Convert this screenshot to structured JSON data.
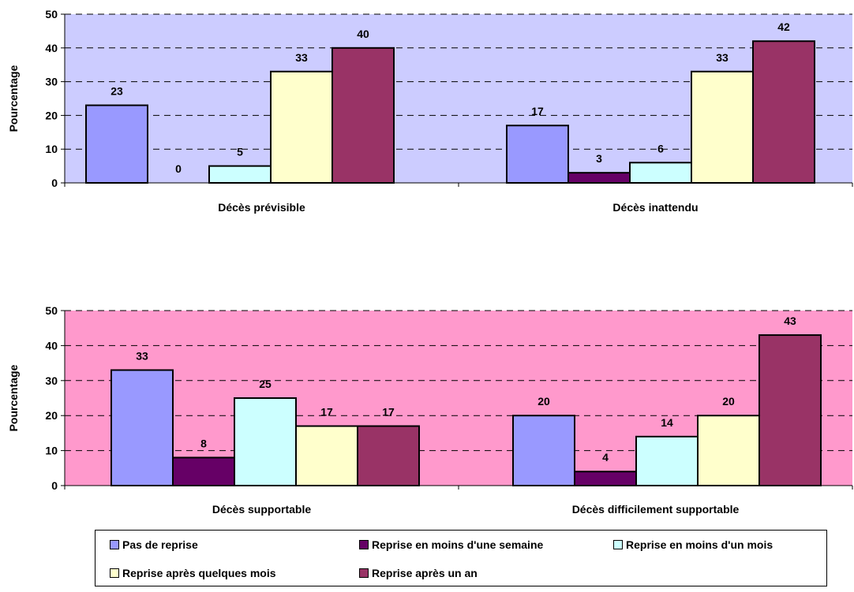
{
  "chart_data": [
    {
      "type": "bar",
      "ylabel": "Pourcentage",
      "ylim": [
        0,
        50
      ],
      "yticks": [
        0,
        10,
        20,
        30,
        40,
        50
      ],
      "background": "#ccccff",
      "categories": [
        "Décès prévisible",
        "Décès inattendu"
      ],
      "series": [
        {
          "name": "Pas de reprise",
          "values": [
            23,
            17
          ]
        },
        {
          "name": "Reprise en moins d'une semaine",
          "values": [
            0,
            3
          ]
        },
        {
          "name": "Reprise en moins d'un mois",
          "values": [
            5,
            6
          ]
        },
        {
          "name": "Reprise après quelques mois",
          "values": [
            33,
            33
          ]
        },
        {
          "name": "Reprise après un an",
          "values": [
            40,
            42
          ]
        }
      ],
      "grid": "dashed horizontal"
    },
    {
      "type": "bar",
      "ylabel": "Pourcentage",
      "ylim": [
        0,
        50
      ],
      "yticks": [
        0,
        10,
        20,
        30,
        40,
        50
      ],
      "background": "#ff99cc",
      "categories": [
        "Décès supportable",
        "Décès difficilement supportable"
      ],
      "series": [
        {
          "name": "Pas de reprise",
          "values": [
            33,
            20
          ]
        },
        {
          "name": "Reprise en moins d'une semaine",
          "values": [
            8,
            4
          ]
        },
        {
          "name": "Reprise en moins d'un mois",
          "values": [
            25,
            14
          ]
        },
        {
          "name": "Reprise après quelques mois",
          "values": [
            17,
            20
          ]
        },
        {
          "name": "Reprise après un an",
          "values": [
            17,
            43
          ]
        }
      ],
      "grid": "dashed horizontal"
    }
  ],
  "series_colors": [
    "#9999ff",
    "#660066",
    "#ccffff",
    "#ffffcc",
    "#993366"
  ],
  "legend": {
    "placement": "bottom",
    "items": [
      {
        "label": "Pas de reprise",
        "color": "#9999ff"
      },
      {
        "label": "Reprise en moins d'une semaine",
        "color": "#660066"
      },
      {
        "label": "Reprise en moins d'un mois",
        "color": "#ccffff"
      },
      {
        "label": "Reprise après quelques mois",
        "color": "#ffffcc"
      },
      {
        "label": "Reprise après un an",
        "color": "#993366"
      }
    ]
  }
}
